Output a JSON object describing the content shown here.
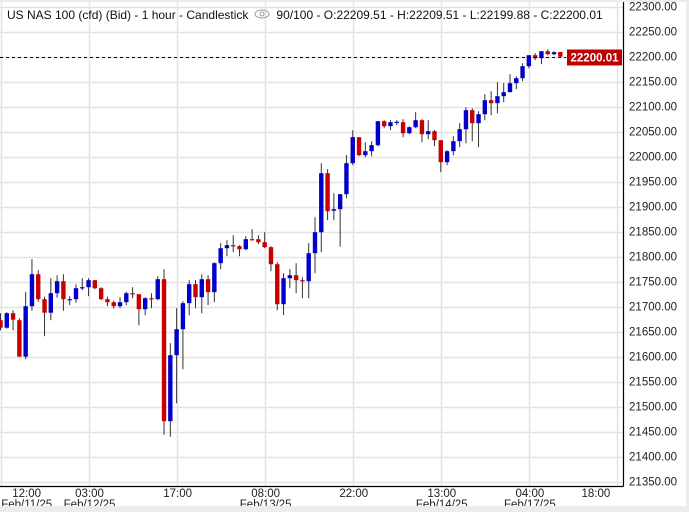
{
  "header": {
    "title": "US NAS 100 (cfd) (Bid) - 1 hour - Candlestick",
    "eye_icon": "eye-icon",
    "ohlc_text": "90/100 - O:22209.51 - H:22209.51 - L:22199.88 - C:22200.01"
  },
  "colors": {
    "bullish": "#0000c8",
    "bearish": "#c80000",
    "wick": "#333333",
    "grid": "#e3e3e3",
    "current_price": "#c00000"
  },
  "chart_data": {
    "type": "candlestick",
    "grid": true,
    "ylim": [
      21350,
      22300
    ],
    "y_ticks": [
      "22300.00",
      "22250.00",
      "22200.00",
      "22150.00",
      "22100.00",
      "22050.00",
      "22000.00",
      "21950.00",
      "21900.00",
      "21850.00",
      "21800.00",
      "21750.00",
      "21700.00",
      "21650.00",
      "21600.00",
      "21550.00",
      "21500.00",
      "21450.00",
      "21400.00",
      "21350.00"
    ],
    "current_price": {
      "value": 22200.01,
      "label": "22200.01"
    },
    "x_ticks": [
      {
        "index": 4,
        "time": "12:00",
        "date": "Feb/11/25"
      },
      {
        "index": 14,
        "time": "03:00",
        "date": "Feb/12/25"
      },
      {
        "index": 28,
        "time": "17:00",
        "date": ""
      },
      {
        "index": 42,
        "time": "08:00",
        "date": "Feb/13/25"
      },
      {
        "index": 56,
        "time": "22:00",
        "date": ""
      },
      {
        "index": 70,
        "time": "13:00",
        "date": "Feb/14/25"
      },
      {
        "index": 84,
        "time": "04:00",
        "date": "Feb/17/25"
      },
      {
        "index": 94.5,
        "time": "18:00",
        "date": ""
      }
    ],
    "ohlc_fields": [
      "open",
      "high",
      "low",
      "close"
    ],
    "candles": [
      [
        21673,
        21687,
        21653,
        21658
      ],
      [
        21658,
        21689,
        21656,
        21687
      ],
      [
        21687,
        21693,
        21653,
        21674
      ],
      [
        21673,
        21677,
        21600,
        21600
      ],
      [
        21600,
        21729,
        21595,
        21701
      ],
      [
        21701,
        21795,
        21692,
        21765
      ],
      [
        21765,
        21773,
        21710,
        21715
      ],
      [
        21715,
        21720,
        21641,
        21688
      ],
      [
        21688,
        21757,
        21673,
        21727
      ],
      [
        21727,
        21763,
        21718,
        21751
      ],
      [
        21751,
        21765,
        21692,
        21715
      ],
      [
        21713,
        21721,
        21703,
        21715
      ],
      [
        21715,
        21745,
        21708,
        21737
      ],
      [
        21737,
        21757,
        21733,
        21739
      ],
      [
        21739,
        21757,
        21721,
        21753
      ],
      [
        21753,
        21753,
        21735,
        21737
      ],
      [
        21737,
        21739,
        21713,
        21715
      ],
      [
        21715,
        21720,
        21701,
        21709
      ],
      [
        21709,
        21712,
        21696,
        21701
      ],
      [
        21701,
        21719,
        21697,
        21709
      ],
      [
        21709,
        21730,
        21703,
        21727
      ],
      [
        21727,
        21739,
        21717,
        21725
      ],
      [
        21725,
        21725,
        21663,
        21695
      ],
      [
        21695,
        21719,
        21683,
        21717
      ],
      [
        21717,
        21727,
        21697,
        21715
      ],
      [
        21715,
        21761,
        21713,
        21755
      ],
      [
        21755,
        21775,
        21444,
        21471
      ],
      [
        21471,
        21627,
        21440,
        21603
      ],
      [
        21603,
        21697,
        21507,
        21655
      ],
      [
        21655,
        21711,
        21575,
        21707
      ],
      [
        21707,
        21753,
        21683,
        21745
      ],
      [
        21745,
        21753,
        21697,
        21719
      ],
      [
        21719,
        21765,
        21687,
        21755
      ],
      [
        21755,
        21763,
        21703,
        21729
      ],
      [
        21729,
        21789,
        21709,
        21787
      ],
      [
        21787,
        21827,
        21775,
        21817
      ],
      [
        21817,
        21833,
        21801,
        21823
      ],
      [
        21823,
        21843,
        21809,
        21821
      ],
      [
        21821,
        21823,
        21801,
        21815
      ],
      [
        21815,
        21841,
        21813,
        21835
      ],
      [
        21835,
        21855,
        21833,
        21833
      ],
      [
        21835,
        21843,
        21825,
        21829
      ],
      [
        21829,
        21849,
        21817,
        21819
      ],
      [
        21819,
        21821,
        21771,
        21785
      ],
      [
        21785,
        21789,
        21693,
        21705
      ],
      [
        21705,
        21767,
        21683,
        21757
      ],
      [
        21757,
        21775,
        21737,
        21763
      ],
      [
        21763,
        21787,
        21727,
        21753
      ],
      [
        21753,
        21759,
        21717,
        21751
      ],
      [
        21751,
        21827,
        21717,
        21807
      ],
      [
        21807,
        21879,
        21767,
        21849
      ],
      [
        21849,
        21987,
        21809,
        21967
      ],
      [
        21967,
        21975,
        21873,
        21891
      ],
      [
        21892,
        21927,
        21873,
        21895
      ],
      [
        21895,
        21925,
        21820,
        21925
      ],
      [
        21925,
        22003,
        21917,
        21987
      ],
      [
        21987,
        22053,
        21983,
        22039
      ],
      [
        22039,
        22039,
        22001,
        22003
      ],
      [
        22003,
        22029,
        21999,
        22011
      ],
      [
        22011,
        22031,
        22001,
        22023
      ],
      [
        22023,
        22071,
        22021,
        22071
      ],
      [
        22071,
        22073,
        22057,
        22061
      ],
      [
        22061,
        22073,
        22053,
        22069
      ],
      [
        22069,
        22073,
        22063,
        22070
      ],
      [
        22069,
        22075,
        22039,
        22047
      ],
      [
        22047,
        22061,
        22045,
        22059
      ],
      [
        22059,
        22089,
        22057,
        22073
      ],
      [
        22073,
        22075,
        22029,
        22045
      ],
      [
        22045,
        22073,
        22035,
        22051
      ],
      [
        22051,
        22053,
        22021,
        22033
      ],
      [
        22033,
        22033,
        21969,
        21989
      ],
      [
        21989,
        22013,
        21983,
        22011
      ],
      [
        22011,
        22041,
        22003,
        22031
      ],
      [
        22031,
        22067,
        22019,
        22055
      ],
      [
        22055,
        22099,
        22027,
        22093
      ],
      [
        22093,
        22097,
        22031,
        22067
      ],
      [
        22067,
        22091,
        22019,
        22085
      ],
      [
        22085,
        22125,
        22073,
        22113
      ],
      [
        22113,
        22131,
        22083,
        22107
      ],
      [
        22107,
        22149,
        22087,
        22121
      ],
      [
        22121,
        22147,
        22109,
        22129
      ],
      [
        22129,
        22165,
        22129,
        22147
      ],
      [
        22147,
        22161,
        22135,
        22157
      ],
      [
        22157,
        22187,
        22151,
        22181
      ],
      [
        22181,
        22203,
        22177,
        22203
      ],
      [
        22203,
        22207,
        22193,
        22197
      ],
      [
        22197,
        22211,
        22185,
        22211
      ],
      [
        22211,
        22215,
        22203,
        22205
      ],
      [
        22205,
        22211,
        22203,
        22209
      ],
      [
        22209.51,
        22209.51,
        22199.88,
        22200.01
      ]
    ]
  }
}
